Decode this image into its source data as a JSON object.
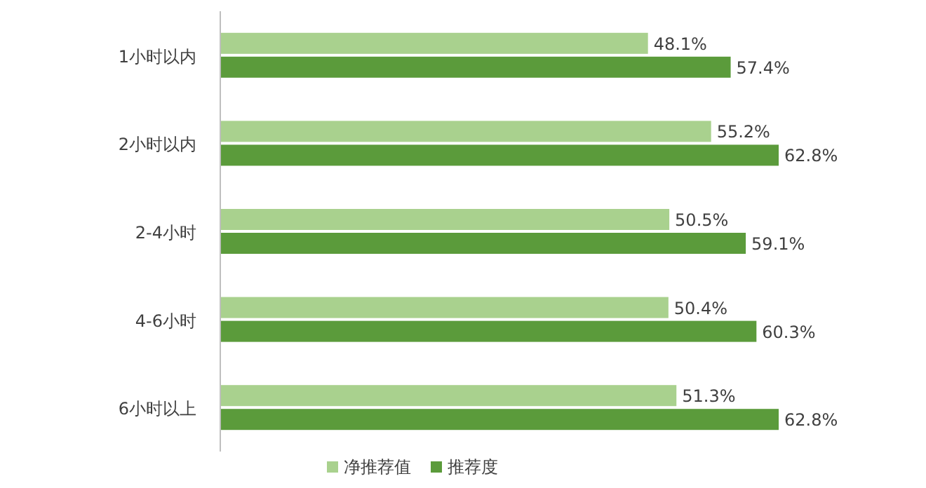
{
  "chart_data": {
    "type": "bar",
    "orientation": "horizontal",
    "categories": [
      "1小时以内",
      "2小时以内",
      "2-4小时",
      "4-6小时",
      "6小时以上"
    ],
    "series": [
      {
        "name": "净推荐值",
        "color": "#a9d18e",
        "values": [
          48.1,
          55.2,
          50.5,
          50.4,
          51.3
        ],
        "value_labels": [
          "48.1%",
          "55.2%",
          "50.5%",
          "50.4%",
          "51.3%"
        ]
      },
      {
        "name": "推荐度",
        "color": "#5b9b3b",
        "values": [
          57.4,
          62.8,
          59.1,
          60.3,
          62.8
        ],
        "value_labels": [
          "57.4%",
          "62.8%",
          "59.1%",
          "60.3%",
          "62.8%"
        ]
      }
    ],
    "legend": "bottom"
  }
}
